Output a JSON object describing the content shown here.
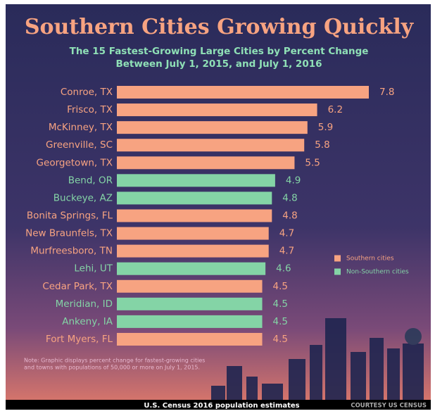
{
  "chart_data": {
    "type": "bar",
    "orientation": "horizontal",
    "title": "Southern Cities Growing Quickly",
    "subtitle": [
      "The 15 Fastest-Growing Large Cities by Percent Change",
      "Between July 1, 2015, and July 1, 2016"
    ],
    "categories": [
      "Conroe, TX",
      "Frisco, TX",
      "McKinney, TX",
      "Greenville, SC",
      "Georgetown, TX",
      "Bend, OR",
      "Buckeye, AZ",
      "Bonita Springs, FL",
      "New Braunfels, TX",
      "Murfreesboro, TN",
      "Lehi, UT",
      "Cedar Park, TX",
      "Meridian, ID",
      "Ankeny, IA",
      "Fort Myers, FL"
    ],
    "series": [
      {
        "name": "Southern cities",
        "color": "#f7a381",
        "values": [
          7.8,
          6.2,
          5.9,
          5.8,
          5.5,
          null,
          null,
          4.8,
          4.7,
          4.7,
          null,
          4.5,
          null,
          null,
          4.5
        ]
      },
      {
        "name": "Non-Southern cities",
        "color": "#84d4a6",
        "values": [
          null,
          null,
          null,
          null,
          null,
          4.9,
          4.8,
          null,
          null,
          null,
          4.6,
          null,
          4.5,
          4.5,
          null
        ]
      }
    ],
    "note": [
      "Note: Graphic displays percent change for fastest-growing cities",
      "and towns with populations of 50,000 or more on July 1, 2015."
    ],
    "source": "U.S. Census 2016 population estimates",
    "credit": "COURTESY US CENSUS"
  }
}
